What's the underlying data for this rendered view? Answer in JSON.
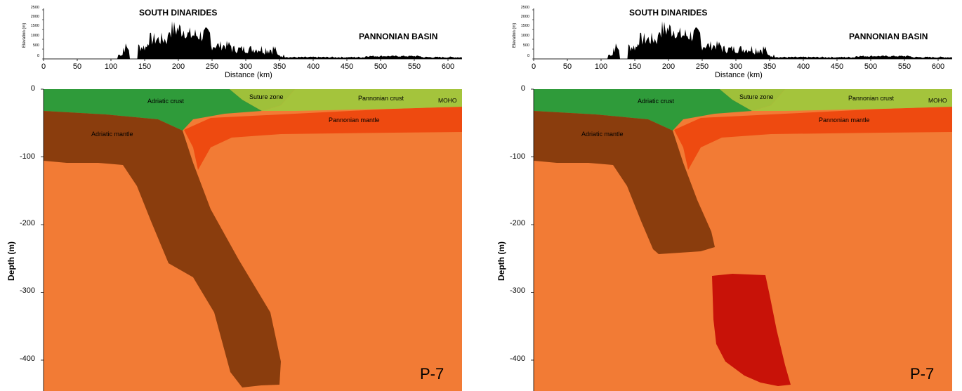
{
  "panels": [
    {
      "id": "left",
      "topo": {
        "south_label": "SOUTH DINARIDES",
        "pannonian_label": "PANNONIAN BASIN",
        "xlabel": "Distance (km)",
        "ylabel": "Elevation (m)",
        "xticks": [
          "0",
          "50",
          "100",
          "150",
          "200",
          "250",
          "300",
          "350",
          "400",
          "450",
          "500",
          "550",
          "600"
        ],
        "yticks": [
          "2500",
          "2000",
          "1500",
          "1000",
          "500",
          "0"
        ]
      },
      "section": {
        "ylabel": "Depth (m)",
        "yticks": [
          "0",
          "-100",
          "-200",
          "-300",
          "-400"
        ],
        "labels": {
          "adriatic_crust": "Adriatic crust",
          "suture_zone": "Suture zone",
          "pannonian_crust": "Pannonian crust",
          "moho": "MOHO",
          "adriatic_mantle": "Adriatic mantle",
          "pannonian_mantle": "Pannonian mantle"
        },
        "profile": "P-7",
        "slab": "continuous"
      }
    },
    {
      "id": "right",
      "topo": {
        "south_label": "SOUTH DINARIDES",
        "pannonian_label": "PANNONIAN BASIN",
        "xlabel": "Distance (km)",
        "ylabel": "Elevation (m)",
        "xticks": [
          "0",
          "50",
          "100",
          "150",
          "200",
          "250",
          "300",
          "350",
          "400",
          "450",
          "500",
          "550",
          "600"
        ],
        "yticks": [
          "2500",
          "2000",
          "1500",
          "1000",
          "500",
          "0"
        ]
      },
      "section": {
        "ylabel": "Depth (m)",
        "yticks": [
          "0",
          "-100",
          "-200",
          "-300",
          "-400"
        ],
        "labels": {
          "adriatic_crust": "Adriatic crust",
          "suture_zone": "Suture zone",
          "pannonian_crust": "Pannonian crust",
          "moho": "MOHO",
          "adriatic_mantle": "Adriatic mantle",
          "pannonian_mantle": "Pannonian mantle"
        },
        "profile": "P-7",
        "slab": "detached"
      }
    }
  ],
  "colors": {
    "asthenosphere": "#f27b35",
    "adriatic_crust": "#2f9b3a",
    "suture_zone": "#9fc03a",
    "pannonian_crust": "#a4c43c",
    "adriatic_mantle": "#8a3d0d",
    "pannonian_mantle": "#ee4a10",
    "detached_slab": "#c81208",
    "topography": "#000000"
  }
}
